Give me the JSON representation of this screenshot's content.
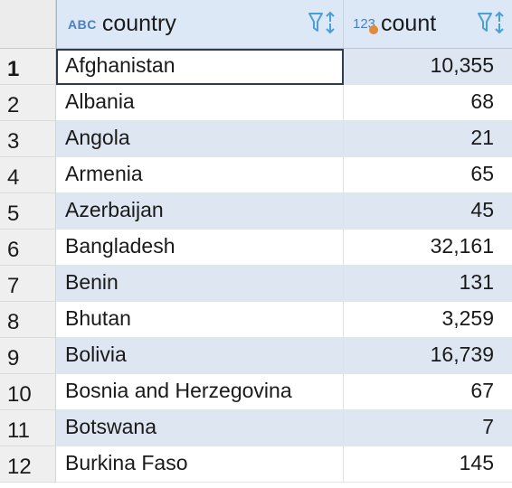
{
  "columns": {
    "country": {
      "type_badge": "ABC",
      "label": "country"
    },
    "count": {
      "type_badge": "123",
      "label": "count"
    }
  },
  "colors": {
    "header_bg": "#dce8f6",
    "stripe": "#dde6f1",
    "type_icon": "#4a7fc4",
    "numeric_dot": "#e08a3c"
  },
  "rows": [
    {
      "num": "1",
      "country": "Afghanistan",
      "count": "10,355"
    },
    {
      "num": "2",
      "country": "Albania",
      "count": "68"
    },
    {
      "num": "3",
      "country": "Angola",
      "count": "21"
    },
    {
      "num": "4",
      "country": "Armenia",
      "count": "65"
    },
    {
      "num": "5",
      "country": "Azerbaijan",
      "count": "45"
    },
    {
      "num": "6",
      "country": "Bangladesh",
      "count": "32,161"
    },
    {
      "num": "7",
      "country": "Benin",
      "count": "131"
    },
    {
      "num": "8",
      "country": "Bhutan",
      "count": "3,259"
    },
    {
      "num": "9",
      "country": "Bolivia",
      "count": "16,739"
    },
    {
      "num": "10",
      "country": "Bosnia and Herzegovina",
      "count": "67"
    },
    {
      "num": "11",
      "country": "Botswana",
      "count": "7"
    },
    {
      "num": "12",
      "country": "Burkina Faso",
      "count": "145"
    }
  ]
}
